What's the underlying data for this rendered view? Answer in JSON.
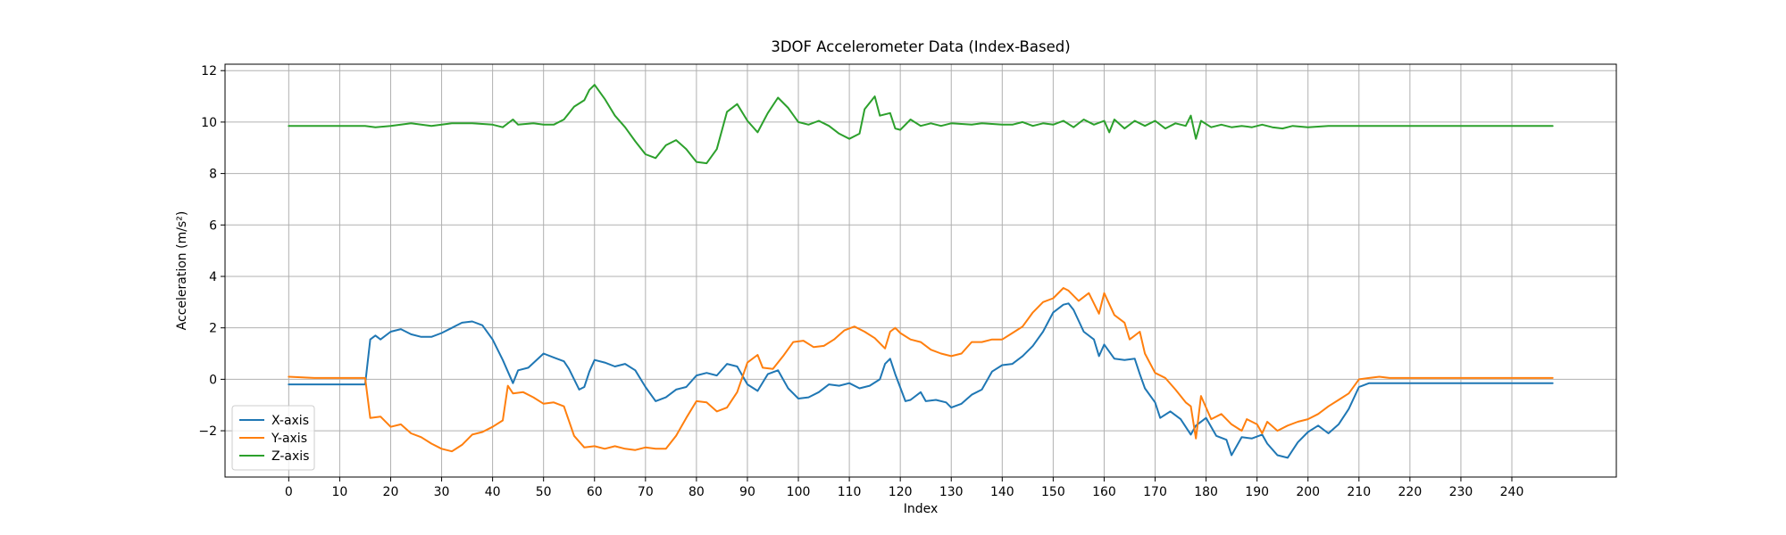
{
  "chart_data": {
    "type": "line",
    "title": "3DOF Accelerometer Data (Index-Based)",
    "xlabel": "Index",
    "ylabel": "Acceleration (m/s²)",
    "xlim": [
      -12.5,
      260.5
    ],
    "ylim": [
      -3.8,
      12.25
    ],
    "x_ticks": [
      0,
      10,
      20,
      30,
      40,
      50,
      60,
      70,
      80,
      90,
      100,
      110,
      120,
      130,
      140,
      150,
      160,
      170,
      180,
      190,
      200,
      210,
      220,
      230,
      240
    ],
    "y_ticks": [
      -2,
      0,
      2,
      4,
      6,
      8,
      10,
      12
    ],
    "grid": true,
    "legend_position": "lower-left",
    "series": [
      {
        "name": "X-axis",
        "color": "#1f77b4",
        "points": [
          [
            0,
            -0.2
          ],
          [
            15,
            -0.2
          ],
          [
            16,
            1.55
          ],
          [
            17,
            1.7
          ],
          [
            18,
            1.55
          ],
          [
            20,
            1.85
          ],
          [
            22,
            1.95
          ],
          [
            24,
            1.75
          ],
          [
            26,
            1.65
          ],
          [
            28,
            1.65
          ],
          [
            30,
            1.8
          ],
          [
            32,
            2.0
          ],
          [
            34,
            2.2
          ],
          [
            36,
            2.25
          ],
          [
            38,
            2.1
          ],
          [
            40,
            1.55
          ],
          [
            42,
            0.75
          ],
          [
            44,
            -0.15
          ],
          [
            45,
            0.35
          ],
          [
            47,
            0.45
          ],
          [
            50,
            1.0
          ],
          [
            52,
            0.85
          ],
          [
            54,
            0.7
          ],
          [
            55,
            0.4
          ],
          [
            57,
            -0.4
          ],
          [
            58,
            -0.3
          ],
          [
            59,
            0.3
          ],
          [
            60,
            0.75
          ],
          [
            62,
            0.65
          ],
          [
            64,
            0.5
          ],
          [
            66,
            0.6
          ],
          [
            68,
            0.35
          ],
          [
            70,
            -0.3
          ],
          [
            72,
            -0.85
          ],
          [
            74,
            -0.7
          ],
          [
            76,
            -0.4
          ],
          [
            78,
            -0.3
          ],
          [
            80,
            0.15
          ],
          [
            82,
            0.25
          ],
          [
            84,
            0.15
          ],
          [
            86,
            0.6
          ],
          [
            88,
            0.5
          ],
          [
            90,
            -0.2
          ],
          [
            92,
            -0.45
          ],
          [
            94,
            0.2
          ],
          [
            96,
            0.35
          ],
          [
            98,
            -0.35
          ],
          [
            100,
            -0.75
          ],
          [
            102,
            -0.7
          ],
          [
            104,
            -0.5
          ],
          [
            106,
            -0.2
          ],
          [
            108,
            -0.25
          ],
          [
            110,
            -0.15
          ],
          [
            112,
            -0.35
          ],
          [
            114,
            -0.25
          ],
          [
            116,
            0.0
          ],
          [
            117,
            0.6
          ],
          [
            118,
            0.8
          ],
          [
            119,
            0.2
          ],
          [
            121,
            -0.85
          ],
          [
            122,
            -0.8
          ],
          [
            124,
            -0.5
          ],
          [
            125,
            -0.85
          ],
          [
            127,
            -0.8
          ],
          [
            129,
            -0.9
          ],
          [
            130,
            -1.1
          ],
          [
            132,
            -0.95
          ],
          [
            134,
            -0.6
          ],
          [
            136,
            -0.4
          ],
          [
            138,
            0.3
          ],
          [
            140,
            0.55
          ],
          [
            142,
            0.6
          ],
          [
            144,
            0.9
          ],
          [
            146,
            1.3
          ],
          [
            148,
            1.85
          ],
          [
            150,
            2.6
          ],
          [
            152,
            2.9
          ],
          [
            153,
            2.95
          ],
          [
            154,
            2.7
          ],
          [
            156,
            1.85
          ],
          [
            158,
            1.55
          ],
          [
            159,
            0.9
          ],
          [
            160,
            1.35
          ],
          [
            162,
            0.8
          ],
          [
            164,
            0.75
          ],
          [
            166,
            0.8
          ],
          [
            167,
            0.2
          ],
          [
            168,
            -0.35
          ],
          [
            170,
            -0.9
          ],
          [
            171,
            -1.5
          ],
          [
            173,
            -1.25
          ],
          [
            175,
            -1.55
          ],
          [
            177,
            -2.15
          ],
          [
            178,
            -1.8
          ],
          [
            180,
            -1.5
          ],
          [
            182,
            -2.2
          ],
          [
            184,
            -2.35
          ],
          [
            185,
            -2.95
          ],
          [
            187,
            -2.25
          ],
          [
            189,
            -2.3
          ],
          [
            191,
            -2.15
          ],
          [
            192,
            -2.5
          ],
          [
            194,
            -2.95
          ],
          [
            196,
            -3.05
          ],
          [
            198,
            -2.45
          ],
          [
            200,
            -2.05
          ],
          [
            202,
            -1.8
          ],
          [
            204,
            -2.1
          ],
          [
            206,
            -1.75
          ],
          [
            208,
            -1.15
          ],
          [
            210,
            -0.3
          ],
          [
            212,
            -0.15
          ],
          [
            248,
            -0.15
          ]
        ]
      },
      {
        "name": "Y-axis",
        "color": "#ff7f0e",
        "points": [
          [
            0,
            0.1
          ],
          [
            5,
            0.05
          ],
          [
            15,
            0.05
          ],
          [
            16,
            -1.5
          ],
          [
            18,
            -1.45
          ],
          [
            20,
            -1.85
          ],
          [
            22,
            -1.75
          ],
          [
            24,
            -2.1
          ],
          [
            26,
            -2.25
          ],
          [
            28,
            -2.5
          ],
          [
            30,
            -2.7
          ],
          [
            32,
            -2.8
          ],
          [
            34,
            -2.55
          ],
          [
            36,
            -2.15
          ],
          [
            38,
            -2.05
          ],
          [
            40,
            -1.85
          ],
          [
            42,
            -1.6
          ],
          [
            43,
            -0.25
          ],
          [
            44,
            -0.55
          ],
          [
            46,
            -0.5
          ],
          [
            48,
            -0.7
          ],
          [
            50,
            -0.95
          ],
          [
            52,
            -0.9
          ],
          [
            54,
            -1.05
          ],
          [
            56,
            -2.2
          ],
          [
            58,
            -2.65
          ],
          [
            60,
            -2.6
          ],
          [
            62,
            -2.7
          ],
          [
            64,
            -2.6
          ],
          [
            66,
            -2.7
          ],
          [
            68,
            -2.75
          ],
          [
            70,
            -2.65
          ],
          [
            72,
            -2.7
          ],
          [
            74,
            -2.7
          ],
          [
            76,
            -2.2
          ],
          [
            78,
            -1.5
          ],
          [
            80,
            -0.85
          ],
          [
            82,
            -0.9
          ],
          [
            84,
            -1.25
          ],
          [
            86,
            -1.1
          ],
          [
            88,
            -0.5
          ],
          [
            90,
            0.65
          ],
          [
            92,
            0.95
          ],
          [
            93,
            0.45
          ],
          [
            95,
            0.4
          ],
          [
            97,
            0.9
          ],
          [
            99,
            1.45
          ],
          [
            101,
            1.5
          ],
          [
            103,
            1.25
          ],
          [
            105,
            1.3
          ],
          [
            107,
            1.55
          ],
          [
            109,
            1.9
          ],
          [
            111,
            2.05
          ],
          [
            113,
            1.85
          ],
          [
            115,
            1.6
          ],
          [
            117,
            1.2
          ],
          [
            118,
            1.85
          ],
          [
            119,
            2.0
          ],
          [
            120,
            1.8
          ],
          [
            122,
            1.55
          ],
          [
            124,
            1.45
          ],
          [
            126,
            1.15
          ],
          [
            128,
            1.0
          ],
          [
            130,
            0.9
          ],
          [
            132,
            1.0
          ],
          [
            134,
            1.45
          ],
          [
            136,
            1.45
          ],
          [
            138,
            1.55
          ],
          [
            140,
            1.55
          ],
          [
            142,
            1.8
          ],
          [
            144,
            2.05
          ],
          [
            146,
            2.6
          ],
          [
            148,
            3.0
          ],
          [
            150,
            3.15
          ],
          [
            152,
            3.55
          ],
          [
            153,
            3.45
          ],
          [
            155,
            3.05
          ],
          [
            157,
            3.35
          ],
          [
            159,
            2.55
          ],
          [
            160,
            3.35
          ],
          [
            162,
            2.5
          ],
          [
            164,
            2.2
          ],
          [
            165,
            1.55
          ],
          [
            167,
            1.85
          ],
          [
            168,
            1.0
          ],
          [
            170,
            0.25
          ],
          [
            172,
            0.05
          ],
          [
            174,
            -0.4
          ],
          [
            176,
            -0.9
          ],
          [
            177,
            -1.05
          ],
          [
            178,
            -2.3
          ],
          [
            179,
            -0.65
          ],
          [
            181,
            -1.55
          ],
          [
            183,
            -1.35
          ],
          [
            185,
            -1.75
          ],
          [
            187,
            -2.0
          ],
          [
            188,
            -1.55
          ],
          [
            190,
            -1.75
          ],
          [
            191,
            -2.1
          ],
          [
            192,
            -1.65
          ],
          [
            194,
            -2.0
          ],
          [
            196,
            -1.8
          ],
          [
            198,
            -1.65
          ],
          [
            200,
            -1.55
          ],
          [
            202,
            -1.35
          ],
          [
            204,
            -1.05
          ],
          [
            206,
            -0.8
          ],
          [
            208,
            -0.55
          ],
          [
            210,
            0.0
          ],
          [
            212,
            0.05
          ],
          [
            214,
            0.1
          ],
          [
            216,
            0.05
          ],
          [
            248,
            0.05
          ]
        ]
      },
      {
        "name": "Z-axis",
        "color": "#2ca02c",
        "points": [
          [
            0,
            9.85
          ],
          [
            15,
            9.85
          ],
          [
            17,
            9.8
          ],
          [
            20,
            9.85
          ],
          [
            24,
            9.95
          ],
          [
            28,
            9.85
          ],
          [
            32,
            9.95
          ],
          [
            36,
            9.95
          ],
          [
            40,
            9.9
          ],
          [
            42,
            9.8
          ],
          [
            44,
            10.1
          ],
          [
            45,
            9.9
          ],
          [
            48,
            9.95
          ],
          [
            50,
            9.9
          ],
          [
            52,
            9.9
          ],
          [
            54,
            10.1
          ],
          [
            56,
            10.6
          ],
          [
            58,
            10.85
          ],
          [
            59,
            11.25
          ],
          [
            60,
            11.45
          ],
          [
            62,
            10.9
          ],
          [
            64,
            10.25
          ],
          [
            66,
            9.8
          ],
          [
            68,
            9.25
          ],
          [
            70,
            8.75
          ],
          [
            72,
            8.6
          ],
          [
            74,
            9.1
          ],
          [
            76,
            9.3
          ],
          [
            78,
            8.95
          ],
          [
            80,
            8.45
          ],
          [
            82,
            8.4
          ],
          [
            84,
            8.95
          ],
          [
            86,
            10.4
          ],
          [
            88,
            10.7
          ],
          [
            90,
            10.05
          ],
          [
            92,
            9.6
          ],
          [
            94,
            10.35
          ],
          [
            96,
            10.95
          ],
          [
            98,
            10.55
          ],
          [
            100,
            10.0
          ],
          [
            102,
            9.9
          ],
          [
            104,
            10.05
          ],
          [
            106,
            9.85
          ],
          [
            108,
            9.55
          ],
          [
            110,
            9.35
          ],
          [
            112,
            9.55
          ],
          [
            113,
            10.5
          ],
          [
            115,
            11.0
          ],
          [
            116,
            10.25
          ],
          [
            118,
            10.35
          ],
          [
            119,
            9.75
          ],
          [
            120,
            9.7
          ],
          [
            122,
            10.1
          ],
          [
            124,
            9.85
          ],
          [
            126,
            9.95
          ],
          [
            128,
            9.85
          ],
          [
            130,
            9.95
          ],
          [
            134,
            9.9
          ],
          [
            136,
            9.95
          ],
          [
            140,
            9.9
          ],
          [
            142,
            9.9
          ],
          [
            144,
            10.0
          ],
          [
            146,
            9.85
          ],
          [
            148,
            9.95
          ],
          [
            150,
            9.9
          ],
          [
            152,
            10.05
          ],
          [
            154,
            9.8
          ],
          [
            156,
            10.1
          ],
          [
            158,
            9.9
          ],
          [
            160,
            10.05
          ],
          [
            161,
            9.6
          ],
          [
            162,
            10.1
          ],
          [
            164,
            9.75
          ],
          [
            166,
            10.05
          ],
          [
            168,
            9.85
          ],
          [
            170,
            10.05
          ],
          [
            172,
            9.75
          ],
          [
            174,
            9.95
          ],
          [
            176,
            9.85
          ],
          [
            177,
            10.25
          ],
          [
            178,
            9.35
          ],
          [
            179,
            10.05
          ],
          [
            181,
            9.8
          ],
          [
            183,
            9.9
          ],
          [
            185,
            9.8
          ],
          [
            187,
            9.85
          ],
          [
            189,
            9.8
          ],
          [
            191,
            9.9
          ],
          [
            193,
            9.8
          ],
          [
            195,
            9.75
          ],
          [
            197,
            9.85
          ],
          [
            200,
            9.8
          ],
          [
            204,
            9.85
          ],
          [
            210,
            9.85
          ],
          [
            248,
            9.85
          ]
        ]
      }
    ]
  }
}
